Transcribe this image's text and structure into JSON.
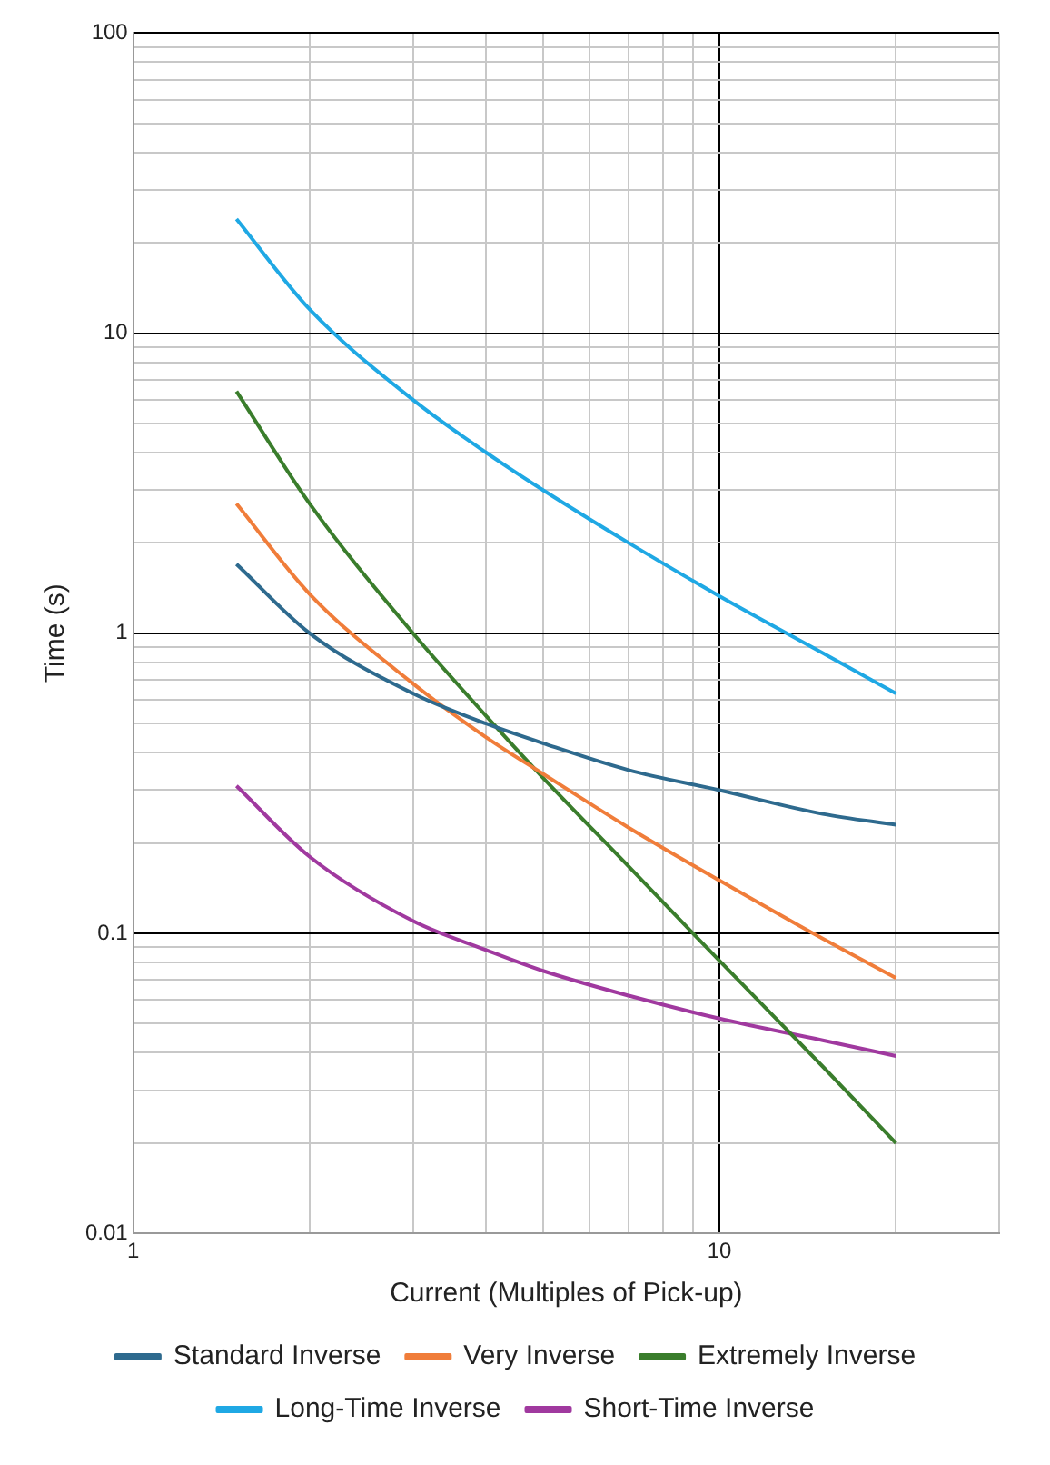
{
  "chart_data": {
    "type": "line",
    "xlabel": "Current (Multiples of Pick-up)",
    "ylabel": "Time (s)",
    "log": "xy",
    "grid": true,
    "legend": "bottom",
    "marker": "none",
    "line_style": "solid",
    "x": [
      1.5,
      2,
      3,
      4,
      5,
      7,
      10,
      15,
      20
    ],
    "xlim": [
      1,
      30
    ],
    "xticks": [
      1,
      {
        "value": 2,
        "label": null
      },
      {
        "value": 3,
        "label": null
      },
      {
        "value": 4,
        "label": null
      },
      {
        "value": 5,
        "label": null
      },
      {
        "value": 6,
        "label": null
      },
      {
        "value": 7,
        "label": null
      },
      {
        "value": 8,
        "label": null
      },
      {
        "value": 9,
        "label": null
      },
      10,
      {
        "value": 20,
        "label": null
      },
      {
        "value": 30,
        "label": null
      }
    ],
    "ylim": [
      0.01,
      100
    ],
    "yticks": [
      {
        "value": 0.01,
        "label": "0.01"
      },
      {
        "value": 0.02,
        "label": null
      },
      {
        "value": 0.03,
        "label": null
      },
      {
        "value": 0.04,
        "label": null
      },
      {
        "value": 0.05,
        "label": null
      },
      {
        "value": 0.06,
        "label": null
      },
      {
        "value": 0.07,
        "label": null
      },
      {
        "value": 0.08,
        "label": null
      },
      {
        "value": 0.09,
        "label": null
      },
      {
        "value": 0.1,
        "label": "0.1"
      },
      {
        "value": 0.2,
        "label": null
      },
      {
        "value": 0.3,
        "label": null
      },
      {
        "value": 0.4,
        "label": null
      },
      {
        "value": 0.5,
        "label": null
      },
      {
        "value": 0.6,
        "label": null
      },
      {
        "value": 0.7,
        "label": null
      },
      {
        "value": 0.8,
        "label": null
      },
      {
        "value": 0.9,
        "label": null
      },
      1,
      {
        "value": 2,
        "label": null
      },
      {
        "value": 3,
        "label": null
      },
      {
        "value": 4,
        "label": null
      },
      {
        "value": 5,
        "label": null
      },
      {
        "value": 6,
        "label": null
      },
      {
        "value": 7,
        "label": null
      },
      {
        "value": 8,
        "label": null
      },
      {
        "value": 9,
        "label": null
      },
      10,
      {
        "value": 20,
        "label": null
      },
      {
        "value": 30,
        "label": null
      },
      {
        "value": 40,
        "label": null
      },
      {
        "value": 50,
        "label": null
      },
      {
        "value": 60,
        "label": null
      },
      {
        "value": 70,
        "label": null
      },
      {
        "value": 80,
        "label": null
      },
      {
        "value": 90,
        "label": null
      },
      100
    ],
    "series": [
      {
        "name": "Standard Inverse",
        "color": "#2e6a8e",
        "values": [
          1.7,
          1.0,
          0.63,
          0.5,
          0.43,
          0.35,
          0.3,
          0.25,
          0.23
        ]
      },
      {
        "name": "Very Inverse",
        "color": "#f07d3a",
        "values": [
          2.7,
          1.35,
          0.68,
          0.45,
          0.34,
          0.225,
          0.15,
          0.096,
          0.071
        ]
      },
      {
        "name": "Extremely Inverse",
        "color": "#3a7d2c",
        "values": [
          6.4,
          2.7,
          1.0,
          0.53,
          0.33,
          0.167,
          0.081,
          0.036,
          0.02
        ]
      },
      {
        "name": "Long-Time Inverse",
        "color": "#1fa8e4",
        "values": [
          24,
          12,
          6,
          4,
          3,
          2,
          1.33,
          0.86,
          0.63
        ]
      },
      {
        "name": "Short-Time Inverse",
        "color": "#a0399f",
        "values": [
          0.31,
          0.18,
          0.11,
          0.088,
          0.075,
          0.062,
          0.052,
          0.044,
          0.039
        ]
      }
    ]
  }
}
